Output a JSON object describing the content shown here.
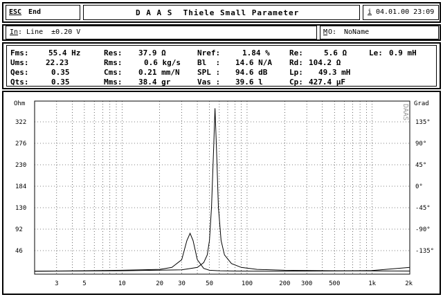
{
  "header": {
    "esc_key": "ESC",
    "esc_action": "End",
    "title": "D A A S  Thiele Small Parameter",
    "info_key": "i",
    "datetime": "04.01.00 23:09"
  },
  "infobar": {
    "input_prefix": "In",
    "input_rest": ": Line  ±0.20 V",
    "mo_key": "M",
    "mo_rest": "O:",
    "mo_value": "NoName"
  },
  "params": {
    "fms_label": "Fms:",
    "fms_value": "55.4 Hz",
    "ums_label": "Ums:",
    "ums_value": "22.23",
    "qes_label": "Qes:",
    "qes_value": "0.35",
    "qts_label": "Qts:",
    "qts_value": "0.35",
    "res_label": "Res:",
    "res_value": "37.9 Ω",
    "rms_label": "Rms:",
    "rms_value": "0.6 kg/s",
    "cms_label": "Cms:",
    "cms_value": "0.21 mm/N",
    "mms_label": "Mms:",
    "mms_value": "38.4 gr",
    "nref_label": "Nref:",
    "nref_value": "1.84 %",
    "bl_label": "Bl  :",
    "bl_value": "14.6 N/A",
    "spl_label": "SPL :",
    "spl_value": "94.6 dB",
    "vas_label": "Vas :",
    "vas_value": "39.6 l",
    "re_label": "Re:",
    "re_value": "5.6 Ω",
    "rd_label": "Rd:",
    "rd_value": "104.2 Ω",
    "lp_label": "Lp:",
    "lp_value": "49.3 mH",
    "cp_label": "Cp:",
    "cp_value": "427.4 µF",
    "le_label": "Le:",
    "le_value": "0.9 mH"
  },
  "chart_data": {
    "type": "line",
    "y_left_label": "Ohm",
    "y_right_label": "Grad",
    "watermark": "DAAS",
    "x_ticks": [
      "3",
      "5",
      "10",
      "20",
      "30",
      "50",
      "100",
      "200",
      "300",
      "500",
      "1k",
      "2k"
    ],
    "x_tick_values": [
      3,
      5,
      10,
      20,
      30,
      50,
      100,
      200,
      300,
      500,
      1000,
      2000
    ],
    "y_left_ticks": [
      "322",
      "276",
      "230",
      "184",
      "130",
      "92",
      "46"
    ],
    "y_right_ticks": [
      "135°",
      "90°",
      "45°",
      "0°",
      "-45°",
      "-90°",
      "-135°"
    ],
    "xlim": [
      2,
      2000
    ],
    "series": [
      {
        "x": [
          2,
          5,
          10,
          20,
          25,
          30,
          33,
          35,
          37,
          40,
          45,
          50,
          60,
          80,
          100,
          200,
          500,
          1000,
          2000
        ],
        "y": [
          6,
          7,
          8,
          10,
          14,
          30,
          70,
          85,
          70,
          30,
          12,
          8,
          7,
          6.5,
          6.3,
          6.1,
          6.6,
          7.5,
          14
        ]
      },
      {
        "x": [
          2,
          10,
          30,
          40,
          45,
          48,
          50,
          52,
          54,
          55.4,
          57,
          59,
          62,
          66,
          75,
          90,
          120,
          200,
          500,
          2000
        ],
        "y": [
          6,
          7,
          9,
          14,
          24,
          40,
          70,
          140,
          260,
          345,
          260,
          140,
          70,
          40,
          22,
          14,
          10,
          8,
          7,
          6.5
        ]
      }
    ]
  }
}
